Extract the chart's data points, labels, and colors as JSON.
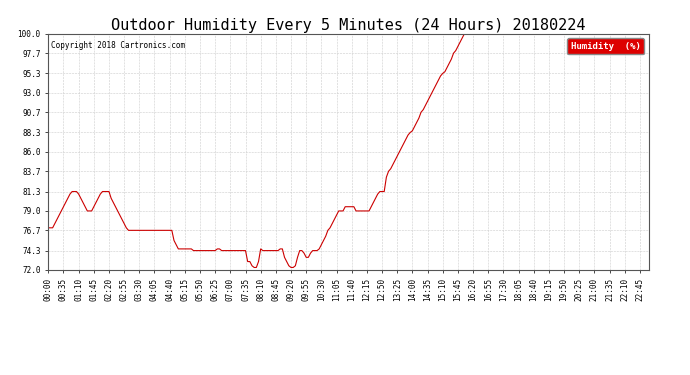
{
  "title": "Outdoor Humidity Every 5 Minutes (24 Hours) 20180224",
  "copyright_text": "Copyright 2018 Cartronics.com",
  "legend_label": "Humidity  (%)",
  "line_color": "#cc0000",
  "legend_bg": "#dd0000",
  "legend_text_color": "#ffffff",
  "ylim": [
    72.0,
    100.0
  ],
  "yticks": [
    72.0,
    74.3,
    76.7,
    79.0,
    81.3,
    83.7,
    86.0,
    88.3,
    90.7,
    93.0,
    95.3,
    97.7,
    100.0
  ],
  "background_color": "#ffffff",
  "grid_color": "#cccccc",
  "title_fontsize": 11,
  "tick_fontsize": 5.5,
  "xtick_every": 7,
  "data": [
    77.0,
    77.0,
    77.0,
    77.5,
    78.0,
    78.5,
    79.0,
    79.5,
    80.0,
    80.5,
    81.0,
    81.3,
    81.3,
    81.3,
    81.0,
    80.5,
    80.0,
    79.5,
    79.0,
    79.0,
    79.0,
    79.5,
    80.0,
    80.5,
    81.0,
    81.3,
    81.3,
    81.3,
    81.3,
    80.5,
    80.0,
    79.5,
    79.0,
    78.5,
    78.0,
    77.5,
    77.0,
    76.7,
    76.7,
    76.7,
    76.7,
    76.7,
    76.7,
    76.7,
    76.7,
    76.7,
    76.7,
    76.7,
    76.7,
    76.7,
    76.7,
    76.7,
    76.7,
    76.7,
    76.7,
    76.7,
    76.7,
    76.7,
    75.5,
    75.0,
    74.5,
    74.5,
    74.5,
    74.5,
    74.5,
    74.5,
    74.5,
    74.3,
    74.3,
    74.3,
    74.3,
    74.3,
    74.3,
    74.3,
    74.3,
    74.3,
    74.3,
    74.3,
    74.5,
    74.5,
    74.3,
    74.3,
    74.3,
    74.3,
    74.3,
    74.3,
    74.3,
    74.3,
    74.3,
    74.3,
    74.3,
    74.3,
    73.0,
    73.0,
    72.5,
    72.3,
    72.3,
    73.0,
    74.5,
    74.3,
    74.3,
    74.3,
    74.3,
    74.3,
    74.3,
    74.3,
    74.3,
    74.5,
    74.5,
    73.5,
    73.0,
    72.5,
    72.3,
    72.3,
    72.5,
    73.5,
    74.3,
    74.3,
    74.0,
    73.5,
    73.5,
    74.0,
    74.3,
    74.3,
    74.3,
    74.5,
    75.0,
    75.5,
    76.0,
    76.7,
    77.0,
    77.5,
    78.0,
    78.5,
    79.0,
    79.0,
    79.0,
    79.5,
    79.5,
    79.5,
    79.5,
    79.5,
    79.0,
    79.0,
    79.0,
    79.0,
    79.0,
    79.0,
    79.0,
    79.5,
    80.0,
    80.5,
    81.0,
    81.3,
    81.3,
    81.3,
    83.0,
    83.7,
    84.0,
    84.5,
    85.0,
    85.5,
    86.0,
    86.5,
    87.0,
    87.5,
    88.0,
    88.3,
    88.5,
    89.0,
    89.5,
    90.0,
    90.7,
    91.0,
    91.5,
    92.0,
    92.5,
    93.0,
    93.5,
    94.0,
    94.5,
    95.0,
    95.3,
    95.5,
    96.0,
    96.5,
    97.0,
    97.7,
    98.0,
    98.5,
    99.0,
    99.5,
    100.0,
    100.0,
    100.0,
    100.0,
    100.0,
    100.0,
    100.0,
    100.0,
    100.0,
    100.0,
    100.0,
    100.0,
    100.0,
    100.0,
    100.0,
    100.0,
    100.0,
    100.0,
    100.0,
    100.0,
    100.0,
    100.0,
    100.0,
    100.0,
    100.0,
    100.0,
    100.0,
    100.0,
    100.0,
    100.0,
    100.0,
    100.0,
    100.0,
    100.0,
    100.0,
    100.0,
    100.0,
    100.0,
    100.0,
    100.0,
    100.0,
    100.0,
    100.0,
    100.0,
    100.0,
    100.0,
    100.0,
    100.0,
    100.0,
    100.0,
    100.0,
    100.0,
    100.0,
    100.0,
    100.0,
    100.0,
    100.0,
    100.0,
    100.0,
    100.0,
    100.0,
    100.0,
    100.0,
    100.0,
    100.0,
    100.0,
    100.0,
    100.0,
    100.0,
    100.0,
    100.0,
    100.0,
    100.0,
    100.0,
    100.0,
    100.0,
    100.0,
    100.0,
    100.0,
    100.0,
    100.0,
    100.0,
    100.0,
    100.0,
    100.0,
    100.0
  ]
}
